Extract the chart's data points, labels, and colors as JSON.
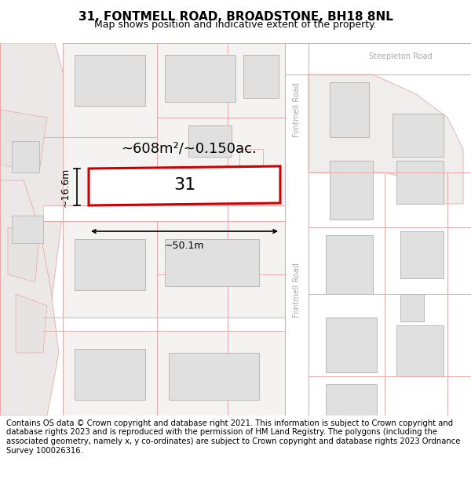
{
  "title": "31, FONTMELL ROAD, BROADSTONE, BH18 8NL",
  "subtitle": "Map shows position and indicative extent of the property.",
  "footer": "Contains OS data © Crown copyright and database right 2021. This information is subject to Crown copyright and database rights 2023 and is reproduced with the permission of HM Land Registry. The polygons (including the associated geometry, namely x, y co-ordinates) are subject to Crown copyright and database rights 2023 Ordnance Survey 100026316.",
  "map_bg": "#f5f3f3",
  "road_line_color": "#e8a8a8",
  "road_fill_color": "#ffffff",
  "bld_outline": "#c8a0a0",
  "bld_fill": "#e8e4e4",
  "gray_outline": "#b0b0b0",
  "gray_fill": "#e0e0e0",
  "highlight_ec": "#cc0000",
  "highlight_fc": "#ffffff",
  "road_label_color": "#aaaaaa",
  "area_label": "~608m²/~0.150ac.",
  "width_label": "~50.1m",
  "height_label": "~16.6m",
  "plot_number": "31",
  "title_fontsize": 11,
  "subtitle_fontsize": 9,
  "footer_fontsize": 7.2,
  "area_fontsize": 13,
  "dim_fontsize": 9,
  "plot_fontsize": 16,
  "road_label_fontsize": 7
}
